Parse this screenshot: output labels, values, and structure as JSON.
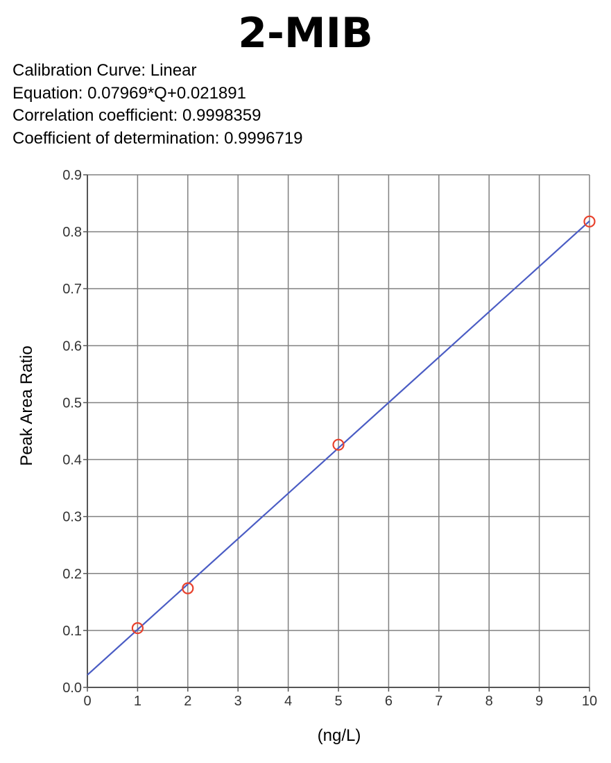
{
  "chart_data": {
    "type": "scatter",
    "title": "2-MIB",
    "info": [
      "Calibration Curve: Linear",
      "Equation: 0.07969*Q+0.021891",
      "Correlation coefficient: 0.9998359",
      "Coefficient of determination: 0.9996719"
    ],
    "xlabel": "(ng/L)",
    "ylabel": "Peak Area Ratio",
    "xlim": [
      0,
      10
    ],
    "ylim": [
      0,
      0.9
    ],
    "x_ticks": [
      0,
      1,
      2,
      3,
      4,
      5,
      6,
      7,
      8,
      9,
      10
    ],
    "x_tick_labels": [
      "0",
      "1",
      "2",
      "3",
      "4",
      "5",
      "6",
      "7",
      "8",
      "9",
      "10"
    ],
    "y_ticks": [
      0,
      0.1,
      0.2,
      0.3,
      0.4,
      0.5,
      0.6,
      0.7,
      0.8,
      0.9
    ],
    "y_tick_labels": [
      "0.0",
      "0.1",
      "0.2",
      "0.3",
      "0.4",
      "0.5",
      "0.6",
      "0.7",
      "0.8",
      "0.9"
    ],
    "grid": true,
    "points": [
      {
        "x": 1,
        "y": 0.104
      },
      {
        "x": 2,
        "y": 0.174
      },
      {
        "x": 5,
        "y": 0.426
      },
      {
        "x": 10,
        "y": 0.818
      }
    ],
    "fit_line": {
      "slope": 0.07969,
      "intercept": 0.021891
    },
    "colors": {
      "points": "#e8412c",
      "line": "#4a5cc4",
      "grid": "#808080",
      "axis": "#555555"
    }
  }
}
